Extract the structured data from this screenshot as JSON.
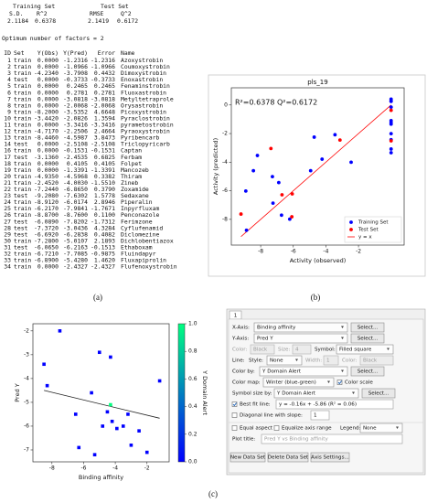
{
  "panel_labels": [
    "(a)",
    "(b)",
    "(c)"
  ],
  "summary": {
    "group_labels": [
      "Training Set",
      "Test Set"
    ],
    "headers": [
      "S.D.",
      "R^2",
      "RMSE",
      "Q^2"
    ],
    "values": [
      "2.1184",
      "0.6378",
      "2.1419",
      "0.6172"
    ]
  },
  "optimum": "Optimum number of factors = 2",
  "table": {
    "header": [
      "ID",
      "Set",
      "Y(Obs)",
      "Y(Pred)",
      "Error",
      "Name"
    ],
    "rows": [
      [
        "1",
        "train",
        "0.0000",
        "-1.2316",
        "-1.2316",
        "Azoxystrobin"
      ],
      [
        "2",
        "train",
        "0.0000",
        "-1.0966",
        "-1.0966",
        "Coumoxystrobin"
      ],
      [
        "3",
        "train",
        "-4.2340",
        "-3.7908",
        "0.4432",
        "Dimoxystrobin"
      ],
      [
        "4",
        "test",
        "0.0000",
        "-0.3733",
        "-0.3733",
        "Enoxastrobin"
      ],
      [
        "5",
        "train",
        "0.0000",
        "0.2465",
        "0.2465",
        "Fenaminstrobin"
      ],
      [
        "6",
        "train",
        "0.0000",
        "0.2781",
        "0.2781",
        "Fluoxastrobin"
      ],
      [
        "7",
        "train",
        "0.0000",
        "-3.0818",
        "-3.0818",
        "Metyltetraprole"
      ],
      [
        "8",
        "train",
        "0.0000",
        "-2.0068",
        "-2.0068",
        "Orysastrobin"
      ],
      [
        "9",
        "train",
        "-8.2000",
        "-3.5352",
        "4.6648",
        "Picoxystrobin"
      ],
      [
        "10",
        "train",
        "-3.4420",
        "-2.0826",
        "1.3594",
        "Pyraclostrobin"
      ],
      [
        "11",
        "train",
        "0.0000",
        "-3.3416",
        "-3.3416",
        "pyrametostrobin"
      ],
      [
        "12",
        "train",
        "-4.7170",
        "-2.2506",
        "2.4664",
        "Pyraoxystrobin"
      ],
      [
        "13",
        "train",
        "-8.4460",
        "-4.5987",
        "3.8473",
        "Pyribencarb"
      ],
      [
        "14",
        "test",
        "0.0000",
        "-2.5108",
        "-2.5108",
        "Triclopyricarb"
      ],
      [
        "16",
        "train",
        "0.0000",
        "-0.1531",
        "-0.1531",
        "Captan"
      ],
      [
        "17",
        "test",
        "-3.1360",
        "-2.4535",
        "0.6825",
        "Ferbam"
      ],
      [
        "18",
        "train",
        "0.0000",
        "0.4105",
        "0.4105",
        "Folpet"
      ],
      [
        "19",
        "train",
        "0.0000",
        "-1.3391",
        "-1.3391",
        "Mancozeb"
      ],
      [
        "20",
        "train",
        "-4.9350",
        "-4.5968",
        "0.3382",
        "Thiram"
      ],
      [
        "21",
        "train",
        "-2.4520",
        "-4.0030",
        "-1.5510",
        "Zineb"
      ],
      [
        "22",
        "train",
        "-7.2440",
        "-6.8650",
        "0.3790",
        "Zoxamide"
      ],
      [
        "23",
        "test",
        "-9.2080",
        "-7.6302",
        "1.5778",
        "Sedaxane"
      ],
      [
        "24",
        "train",
        "-8.9120",
        "-6.0174",
        "2.8946",
        "Piperalin"
      ],
      [
        "25",
        "train",
        "-6.2170",
        "-7.9841",
        "-1.7671",
        "Inpyrfluxam"
      ],
      [
        "26",
        "train",
        "-8.8700",
        "-8.7600",
        "0.1100",
        "Penconazole"
      ],
      [
        "27",
        "test",
        "-6.0890",
        "-7.8202",
        "-1.7312",
        "Ferimzone"
      ],
      [
        "28",
        "test",
        "-7.3720",
        "-3.0436",
        "4.3284",
        "Cyflufenamid"
      ],
      [
        "29",
        "test",
        "-6.6920",
        "-6.2838",
        "0.4082",
        "Diclomezine"
      ],
      [
        "30",
        "train",
        "-7.2800",
        "-5.0107",
        "2.1893",
        "Dichlobentiazox"
      ],
      [
        "31",
        "test",
        "-6.0650",
        "-6.2163",
        "-0.1513",
        "Ethaboxam"
      ],
      [
        "32",
        "train",
        "-6.7210",
        "-7.7085",
        "-0.9875",
        "Fluindapyr"
      ],
      [
        "33",
        "train",
        "-6.8900",
        "-5.4280",
        "1.4620",
        "Fluxapiprolin"
      ],
      [
        "34",
        "train",
        "0.0000",
        "-2.4327",
        "-2.4327",
        "Flufenoxystrobin"
      ]
    ]
  },
  "chart_data": [
    {
      "type": "scatter",
      "title": "pls_19",
      "x_label": "Activity (observed)",
      "y_label": "Activity (predicted)",
      "annotation": "R²=0.6378 Q²=0.6172",
      "xlim": [
        -9.8,
        0.8
      ],
      "ylim": [
        -9.8,
        1.2
      ],
      "xticks": [
        -8,
        -6,
        -4,
        -2
      ],
      "yticks": [
        -8,
        -6,
        -4,
        -2,
        0
      ],
      "legend": "lower right",
      "series": [
        {
          "name": "Training Set",
          "color": "#0000ff",
          "x": [
            0,
            0,
            -4.234,
            0,
            0,
            0,
            0,
            -8.2,
            -3.442,
            0,
            -4.717,
            -8.446,
            0,
            0,
            0,
            -4.935,
            -2.452,
            -7.244,
            -8.912,
            -6.217,
            -8.87,
            -7.28,
            -6.721,
            -6.89,
            0
          ],
          "values": [
            -1.2316,
            -1.0966,
            -3.7908,
            0.2465,
            0.2781,
            -3.0818,
            -2.0068,
            -3.5352,
            -2.0826,
            -3.3416,
            -2.2506,
            -4.5987,
            -0.1531,
            0.4105,
            -1.3391,
            -4.5968,
            -4.003,
            -6.865,
            -6.0174,
            -7.9841,
            -8.76,
            -5.0107,
            -7.7085,
            -5.428,
            -2.4327
          ]
        },
        {
          "name": "Test Set",
          "color": "#ff0000",
          "x": [
            0,
            0,
            -3.136,
            -9.208,
            -6.089,
            -7.372,
            -6.692,
            -6.065
          ],
          "values": [
            -0.3733,
            -2.5108,
            -2.4535,
            -7.6302,
            -7.8202,
            -3.0436,
            -6.2838,
            -6.2163
          ]
        }
      ],
      "reference": {
        "name": "y = x",
        "color": "#ff0000"
      }
    },
    {
      "type": "scatter",
      "x_label": "Binding affinity",
      "y_label": "Pred Y",
      "marker": "square",
      "xlim": [
        -9.2,
        -0.6
      ],
      "ylim": [
        -7.5,
        -1.7
      ],
      "xticks": [
        -8,
        -6,
        -4,
        -2
      ],
      "yticks": [
        -7,
        -6,
        -5,
        -4,
        -3,
        -2
      ],
      "x": [
        -7.5,
        -8.5,
        -5.0,
        -8.3,
        -4.3,
        -1.2,
        -5.5,
        -6.5,
        -4.3,
        -4.5,
        -3.5,
        -3.9,
        -4.2,
        -4.8,
        -6.3,
        -3.0,
        -2.5,
        -2.0,
        -5.3,
        -3.2
      ],
      "values": [
        -2.0,
        -3.4,
        -2.9,
        -4.3,
        -3.1,
        -4.1,
        -4.6,
        -5.5,
        -5.1,
        -5.4,
        -6.0,
        -6.1,
        -5.8,
        -6.0,
        -6.9,
        -6.8,
        -6.2,
        -7.1,
        -7.2,
        -5.5
      ],
      "color_values": [
        0,
        0,
        0,
        0,
        0,
        0,
        0,
        0,
        1,
        0,
        0,
        0,
        0,
        0,
        0,
        0,
        0,
        0,
        0,
        0
      ],
      "fit": {
        "slope": -0.16,
        "intercept": -5.86,
        "color": "#222222"
      },
      "colorbar": {
        "label": "Y Domain Alert",
        "lim": [
          0,
          1
        ],
        "colormap": [
          "#0000ff",
          "#00ff80"
        ],
        "ticks": [
          {
            "value": 0,
            "label": "0.0"
          },
          {
            "value": 0.2,
            "label": "0.2"
          },
          {
            "value": 0.4,
            "label": "0.4"
          },
          {
            "value": 0.6,
            "label": "0.6"
          },
          {
            "value": 0.8,
            "label": "0.8"
          },
          {
            "value": 1,
            "label": "1.0"
          }
        ]
      }
    }
  ],
  "ui": {
    "tab": "1",
    "x_axis_label": "X-Axis:",
    "x_axis_value": "Binding affinity",
    "x_axis_button": "Select...",
    "y_axis_label": "Y-Axis:",
    "y_axis_value": "Pred Y",
    "y_axis_button": "Select...",
    "color_label": "Color:",
    "color_value": "Black",
    "size_label": "Size:",
    "size_value": "4",
    "symbol_label": "Symbol:",
    "symbol_value": "Filled square",
    "line_label": "Line:",
    "style_label": "Style:",
    "style_value": "None",
    "width_label": "Width:",
    "width_value": "1",
    "line_color_label": "Color:",
    "line_color_value": "Black",
    "color_by_label": "Color by:",
    "color_by_value": "Y Domain Alert",
    "color_by_button": "Select...",
    "color_map_label": "Color map:",
    "color_map_value": "Winter (blue-green)",
    "color_scale_label": "Color scale",
    "symbol_size_label": "Symbol size by:",
    "symbol_size_value": "Y Domain Alert",
    "symbol_size_button": "Select...",
    "best_fit_label": "Best fit line:",
    "best_fit_value": "y = -0.16x + -5.86 (R² = 0.06)",
    "diagonal_label": "Diagonal line with slope:",
    "diagonal_value": "1",
    "equal_aspect_label": "Equal aspect",
    "equalize_label": "Equalize axis range",
    "legend_label": "Legend:",
    "legend_value": "None",
    "plot_title_label": "Plot title:",
    "plot_title_value": "Pred Y vs Binding affinity",
    "buttons": [
      "New Data Set",
      "Delete Data Set",
      "Axis Settings..."
    ]
  }
}
